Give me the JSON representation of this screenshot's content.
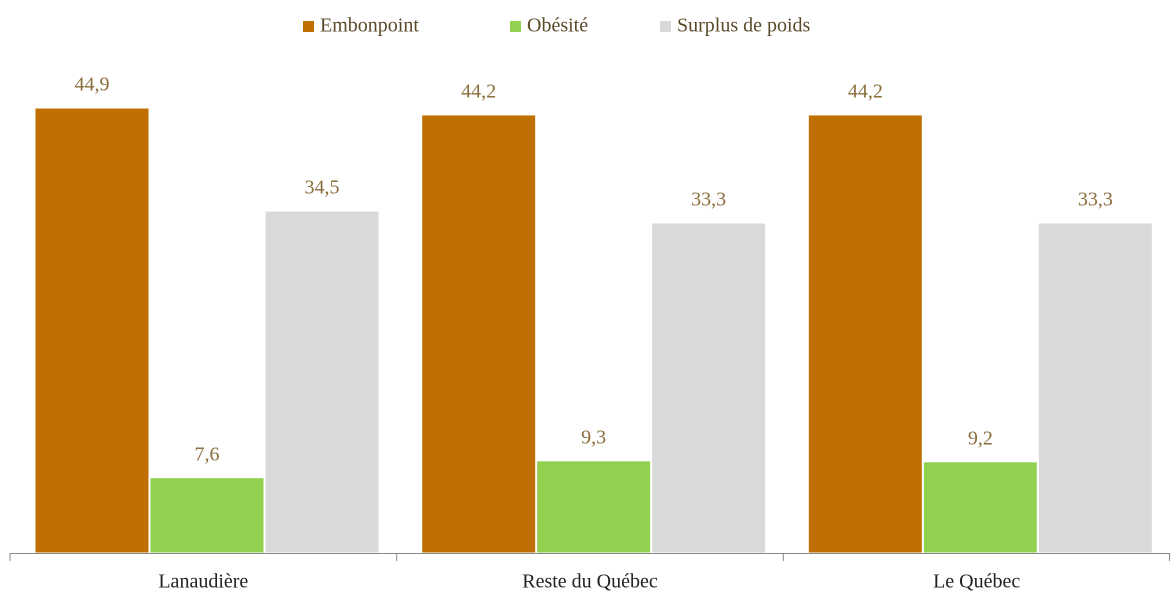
{
  "chart_data": {
    "type": "bar",
    "categories": [
      "Lanaudière",
      "Reste du Québec",
      "Le Québec"
    ],
    "series": [
      {
        "name": "Embonpoint",
        "color": "#c07000",
        "values": [
          44.9,
          44.2,
          44.2
        ],
        "value_labels": [
          "44,9",
          "44,2",
          "44,2"
        ]
      },
      {
        "name": "Obésité",
        "color": "#92d050",
        "values": [
          7.6,
          9.3,
          9.2
        ],
        "value_labels": [
          "7,6",
          "9,3",
          "9,2"
        ]
      },
      {
        "name": "Surplus de poids",
        "color": "#d9d9d9",
        "values": [
          34.5,
          33.3,
          33.3
        ],
        "value_labels": [
          "34,5",
          "33,3",
          "33,3"
        ]
      }
    ],
    "legend": "top"
  }
}
